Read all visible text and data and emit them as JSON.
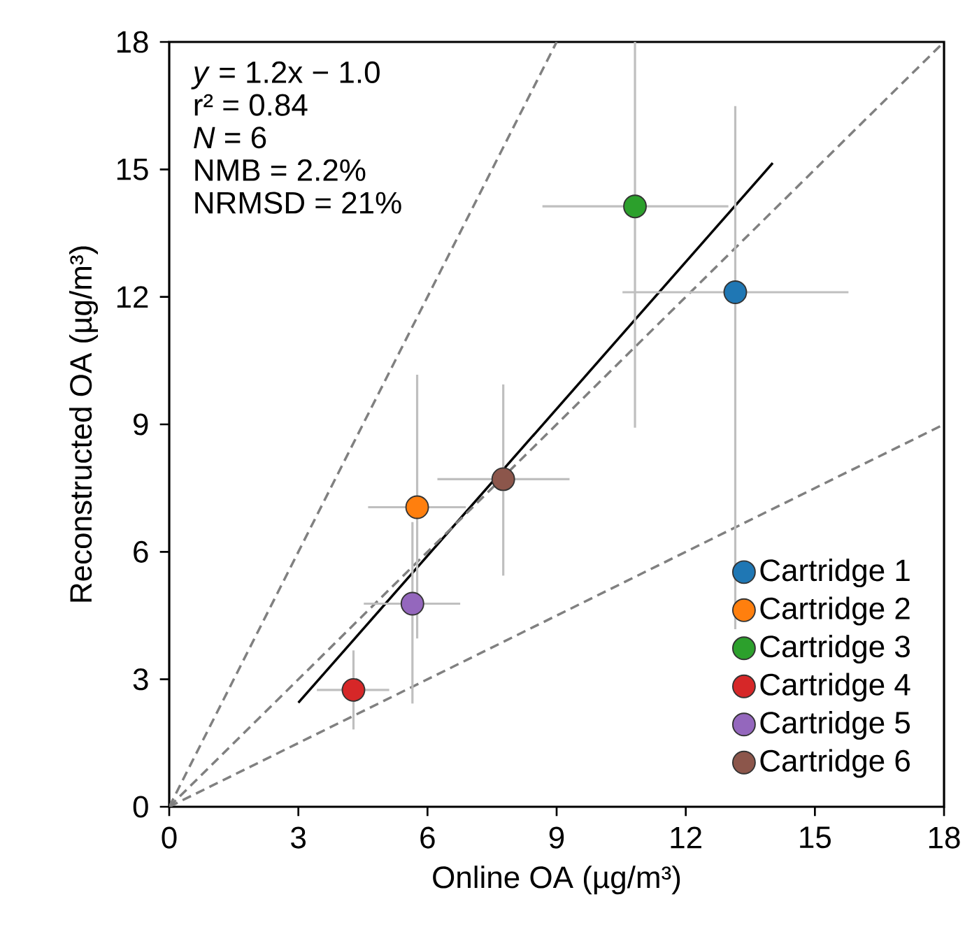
{
  "chart_data": {
    "type": "scatter",
    "xlabel": "Online OA (µg/m³)",
    "ylabel": "Reconstructed OA (µg/m³)",
    "xlim": [
      0,
      18
    ],
    "ylim": [
      0,
      18
    ],
    "xticks": [
      0,
      3,
      6,
      9,
      12,
      15,
      18
    ],
    "yticks": [
      0,
      3,
      6,
      9,
      12,
      15,
      18
    ],
    "legend": "bottom right",
    "marker": "circle",
    "annotations": [
      "*y* = 1.2x − 1.0",
      "r² = 0.84",
      "*N* = 6",
      "NMB = 2.2%",
      "NRMSD = 21%"
    ],
    "series": [
      {
        "name": "Cartridge 1",
        "color": "#1f77b4",
        "x": [
          13.15
        ],
        "values": [
          12.11
        ],
        "xerrors": [
          [
            10.53,
            15.78
          ]
        ],
        "errors": [
          [
            4.18,
            16.49
          ]
        ]
      },
      {
        "name": "Cartridge 2",
        "color": "#ff7f0e",
        "x": [
          5.76
        ],
        "values": [
          7.05
        ],
        "xerrors": [
          [
            4.62,
            6.89
          ]
        ],
        "errors": [
          [
            3.96,
            10.17
          ]
        ]
      },
      {
        "name": "Cartridge 3",
        "color": "#2ca02c",
        "x": [
          10.82
        ],
        "values": [
          14.13
        ],
        "xerrors": [
          [
            8.67,
            12.99
          ]
        ],
        "errors": [
          [
            8.92,
            18
          ]
        ]
      },
      {
        "name": "Cartridge 4",
        "color": "#d62728",
        "x": [
          4.28
        ],
        "values": [
          2.75
        ],
        "xerrors": [
          [
            3.43,
            5.11
          ]
        ],
        "errors": [
          [
            1.82,
            3.68
          ]
        ]
      },
      {
        "name": "Cartridge 5",
        "color": "#9467bd",
        "x": [
          5.65
        ],
        "values": [
          4.78
        ],
        "xerrors": [
          [
            4.52,
            6.76
          ]
        ],
        "errors": [
          [
            2.43,
            6.7
          ]
        ]
      },
      {
        "name": "Cartridge 6",
        "color": "#8c564b",
        "x": [
          7.76
        ],
        "values": [
          7.71
        ],
        "xerrors": [
          [
            6.23,
            9.3
          ]
        ],
        "errors": [
          [
            5.44,
            9.94
          ]
        ]
      },
      {
        "type": "line",
        "color": "#000000",
        "line_style": "solid",
        "marker": "none",
        "x": [
          3,
          14.02
        ],
        "values": [
          2.45,
          15.15
        ]
      },
      {
        "type": "line",
        "color": "#808080",
        "line_style": "dashed",
        "marker": "none",
        "x": [
          0,
          18
        ],
        "values": [
          0,
          18
        ]
      },
      {
        "type": "line",
        "color": "#808080",
        "line_style": "dashed",
        "marker": "none",
        "x": [
          0,
          9
        ],
        "values": [
          0,
          18
        ]
      },
      {
        "type": "line",
        "color": "#808080",
        "line_style": "dashed",
        "marker": "none",
        "x": [
          0,
          18
        ],
        "values": [
          0,
          9
        ]
      }
    ]
  }
}
